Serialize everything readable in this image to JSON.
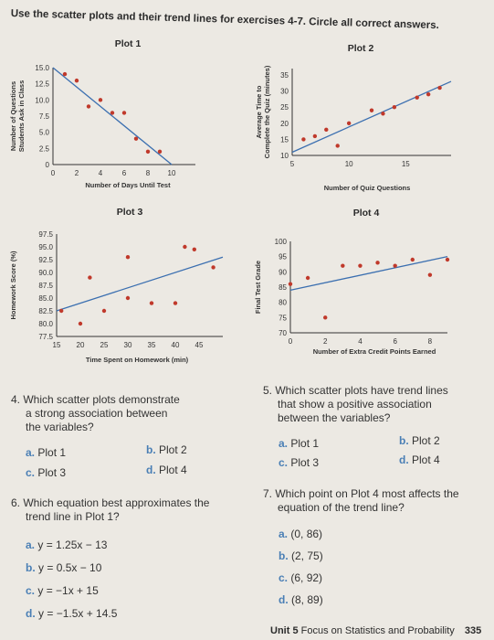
{
  "instructions": "Use the scatter plots and their trend lines for exercises 4-7. Circle all correct answers.",
  "chart_data": [
    {
      "type": "scatter",
      "title": "Plot 1",
      "xlabel": "Number of Days Until Test",
      "ylabel_lines": [
        "Number of Questions",
        "Students Ask in Class"
      ],
      "xlim": [
        0,
        12
      ],
      "ylim": [
        0,
        15
      ],
      "xticks": [
        0,
        2,
        4,
        6,
        8,
        10
      ],
      "yticks": [
        0,
        2.5,
        5.0,
        7.5,
        10.0,
        12.5,
        15.0
      ],
      "ytick_labels": [
        "0",
        "2.5",
        "5.0",
        "7.5",
        "10.0",
        "12.5",
        "15.0"
      ],
      "points": [
        [
          1,
          14
        ],
        [
          2,
          13
        ],
        [
          3,
          9
        ],
        [
          4,
          10
        ],
        [
          5,
          8
        ],
        [
          6,
          8
        ],
        [
          7,
          4
        ],
        [
          8,
          2
        ],
        [
          9,
          2
        ]
      ],
      "trend": [
        [
          0,
          15
        ],
        [
          10,
          0
        ]
      ]
    },
    {
      "type": "scatter",
      "title": "Plot 2",
      "xlabel": "Number of Quiz Questions",
      "ylabel_lines": [
        "Average Time to",
        "Complete the Quiz (minutes)"
      ],
      "xlim": [
        5,
        19
      ],
      "ylim": [
        10,
        37
      ],
      "xticks": [
        5,
        10,
        15
      ],
      "yticks": [
        10,
        15,
        20,
        25,
        30,
        35
      ],
      "ytick_labels": [
        "10",
        "15",
        "20",
        "25",
        "30",
        "35"
      ],
      "points": [
        [
          6,
          15
        ],
        [
          7,
          16
        ],
        [
          8,
          18
        ],
        [
          9,
          13
        ],
        [
          10,
          20
        ],
        [
          12,
          24
        ],
        [
          13,
          23
        ],
        [
          14,
          25
        ],
        [
          16,
          28
        ],
        [
          17,
          29
        ],
        [
          18,
          31
        ]
      ],
      "trend": [
        [
          5,
          11
        ],
        [
          19,
          33
        ]
      ]
    },
    {
      "type": "scatter",
      "title": "Plot 3",
      "xlabel": "Time Spent on Homework (min)",
      "ylabel_lines": [
        "Homework Score (%)"
      ],
      "xlim": [
        15,
        50
      ],
      "ylim": [
        77.5,
        97.5
      ],
      "xticks": [
        15,
        20,
        25,
        30,
        35,
        40,
        45
      ],
      "yticks": [
        77.5,
        80.0,
        82.5,
        85.0,
        87.5,
        90.0,
        92.5,
        95.0,
        97.5
      ],
      "ytick_labels": [
        "77.5",
        "80.0",
        "82.5",
        "85.0",
        "87.5",
        "90.0",
        "92.5",
        "95.0",
        "97.5"
      ],
      "points": [
        [
          16,
          82.5
        ],
        [
          20,
          80
        ],
        [
          22,
          89
        ],
        [
          25,
          82.5
        ],
        [
          30,
          85
        ],
        [
          30,
          93
        ],
        [
          35,
          84
        ],
        [
          40,
          84
        ],
        [
          42,
          95
        ],
        [
          44,
          94.5
        ],
        [
          48,
          91
        ]
      ],
      "trend": [
        [
          15,
          82.5
        ],
        [
          50,
          93
        ]
      ]
    },
    {
      "type": "scatter",
      "title": "Plot 4",
      "xlabel": "Number of Extra Credit Points Earned",
      "ylabel_lines": [
        "Final Test Grade"
      ],
      "xlim": [
        0,
        9
      ],
      "ylim": [
        70,
        100
      ],
      "xticks": [
        0,
        2,
        4,
        6,
        8
      ],
      "yticks": [
        70,
        75,
        80,
        85,
        90,
        95,
        100
      ],
      "ytick_labels": [
        "70",
        "75",
        "80",
        "85",
        "90",
        "95",
        "100"
      ],
      "points": [
        [
          0,
          86
        ],
        [
          1,
          88
        ],
        [
          2,
          75
        ],
        [
          3,
          92
        ],
        [
          4,
          92
        ],
        [
          5,
          93
        ],
        [
          6,
          92
        ],
        [
          7,
          94
        ],
        [
          8,
          89
        ],
        [
          9,
          94
        ]
      ],
      "trend": [
        [
          0,
          84
        ],
        [
          9,
          95
        ]
      ]
    }
  ],
  "questions": [
    {
      "number": "4.",
      "text_lines": [
        "Which scatter plots demonstrate",
        "a strong association between",
        "the variables?"
      ],
      "options": [
        {
          "letter": "a.",
          "text": "Plot 1"
        },
        {
          "letter": "b.",
          "text": "Plot 2"
        },
        {
          "letter": "c.",
          "text": "Plot 3"
        },
        {
          "letter": "d.",
          "text": "Plot 4"
        }
      ]
    },
    {
      "number": "5.",
      "text_lines": [
        "Which scatter plots have trend lines",
        "that show a positive association",
        "between the variables?"
      ],
      "options": [
        {
          "letter": "a.",
          "text": "Plot 1"
        },
        {
          "letter": "b.",
          "text": "Plot 2"
        },
        {
          "letter": "c.",
          "text": "Plot 3"
        },
        {
          "letter": "d.",
          "text": "Plot 4"
        }
      ]
    },
    {
      "number": "6.",
      "text_lines": [
        "Which equation best approximates the",
        "trend line in Plot 1?"
      ],
      "options": [
        {
          "letter": "a.",
          "text": "y = 1.25x − 13"
        },
        {
          "letter": "b.",
          "text": "y = 0.5x − 10"
        },
        {
          "letter": "c.",
          "text": "y = −1x + 15"
        },
        {
          "letter": "d.",
          "text": "y = −1.5x + 14.5"
        }
      ]
    },
    {
      "number": "7.",
      "text_lines": [
        "Which point on Plot 4 most affects the",
        "equation of the trend line?"
      ],
      "options": [
        {
          "letter": "a.",
          "text": "(0, 86)"
        },
        {
          "letter": "b.",
          "text": "(2, 75)"
        },
        {
          "letter": "c.",
          "text": "(6, 92)"
        },
        {
          "letter": "d.",
          "text": "(8, 89)"
        }
      ]
    }
  ],
  "footer": {
    "unit": "Unit 5",
    "focus": "Focus on Statistics and Probability",
    "page": "335"
  },
  "colors": {
    "point": "#c0392b",
    "trend": "#3b6fb0",
    "axis": "#333333",
    "option_letter": "#4a7fb5"
  }
}
